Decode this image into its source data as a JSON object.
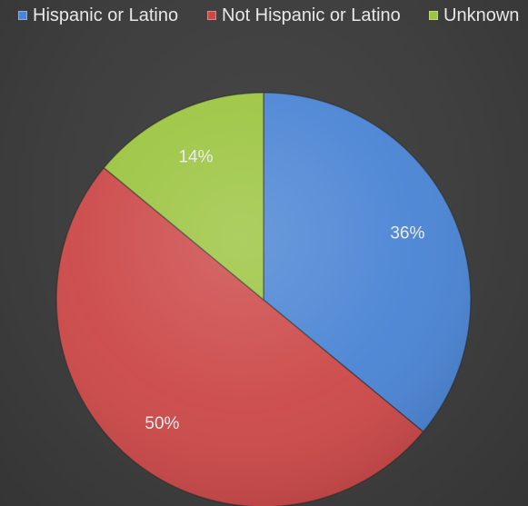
{
  "chart_data": {
    "type": "pie",
    "title": "",
    "legend_position": "top",
    "series": [
      {
        "categories": [
          "Hispanic or Latino",
          "Not Hispanic or Latino",
          "Unknown"
        ],
        "values": [
          36,
          50,
          14
        ],
        "labels": [
          "36%",
          "50%",
          "14%"
        ],
        "colors": [
          "#4a84d4",
          "#cc4848",
          "#9bc43f"
        ]
      }
    ]
  }
}
